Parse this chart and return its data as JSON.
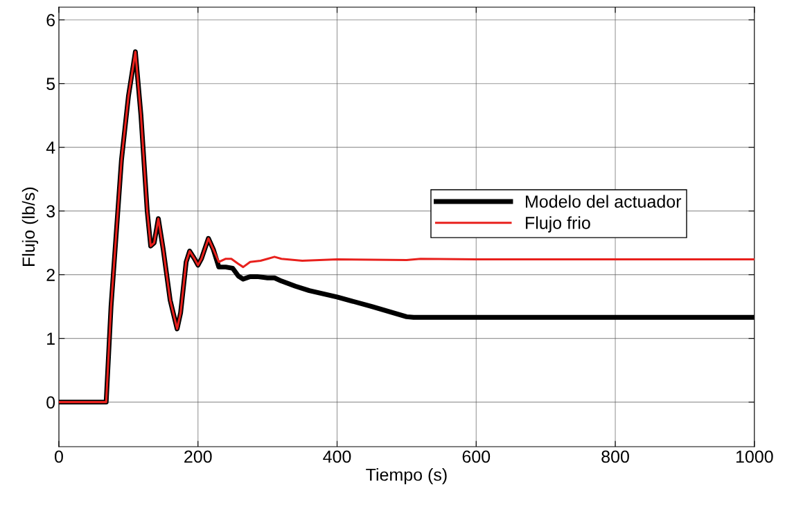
{
  "chart_data": {
    "type": "line",
    "xlabel": "Tiempo (s)",
    "ylabel": "Flujo (lb/s)",
    "xlim": [
      0,
      1000
    ],
    "xticks": [
      0,
      200,
      400,
      600,
      800,
      1000
    ],
    "ylim": [
      -0.7,
      6.2
    ],
    "yticks": [
      0,
      1,
      2,
      3,
      4,
      5,
      6
    ],
    "grid": true,
    "legend": "right",
    "series": [
      {
        "name": "Modelo del actuador",
        "color": "#000000",
        "x": [
          0,
          68,
          75,
          90,
          100,
          110,
          118,
          127,
          132,
          137,
          143,
          150,
          160,
          170,
          175,
          183,
          188,
          195,
          200,
          205,
          215,
          222,
          230,
          240,
          250,
          258,
          265,
          275,
          285,
          300,
          310,
          320,
          340,
          360,
          400,
          450,
          500,
          510,
          1000
        ],
        "values": [
          0,
          0,
          1.5,
          3.8,
          4.8,
          5.5,
          4.5,
          3.0,
          2.45,
          2.5,
          2.88,
          2.4,
          1.6,
          1.15,
          1.4,
          2.2,
          2.37,
          2.25,
          2.15,
          2.25,
          2.57,
          2.4,
          2.12,
          2.12,
          2.1,
          1.98,
          1.93,
          1.97,
          1.97,
          1.95,
          1.95,
          1.9,
          1.82,
          1.75,
          1.65,
          1.5,
          1.34,
          1.33,
          1.33
        ]
      },
      {
        "name": "Flujo frio",
        "color": "#e8201c",
        "x": [
          0,
          68,
          75,
          90,
          100,
          110,
          118,
          127,
          132,
          137,
          143,
          150,
          160,
          170,
          175,
          183,
          188,
          195,
          200,
          205,
          215,
          222,
          230,
          240,
          248,
          258,
          265,
          275,
          290,
          300,
          310,
          320,
          350,
          400,
          500,
          520,
          600,
          1000
        ],
        "values": [
          0,
          0,
          1.5,
          3.8,
          4.8,
          5.5,
          4.5,
          3.0,
          2.45,
          2.5,
          2.88,
          2.4,
          1.6,
          1.15,
          1.4,
          2.2,
          2.37,
          2.25,
          2.15,
          2.25,
          2.57,
          2.4,
          2.2,
          2.25,
          2.25,
          2.17,
          2.12,
          2.2,
          2.22,
          2.25,
          2.28,
          2.25,
          2.22,
          2.24,
          2.23,
          2.25,
          2.24,
          2.24
        ]
      }
    ]
  }
}
